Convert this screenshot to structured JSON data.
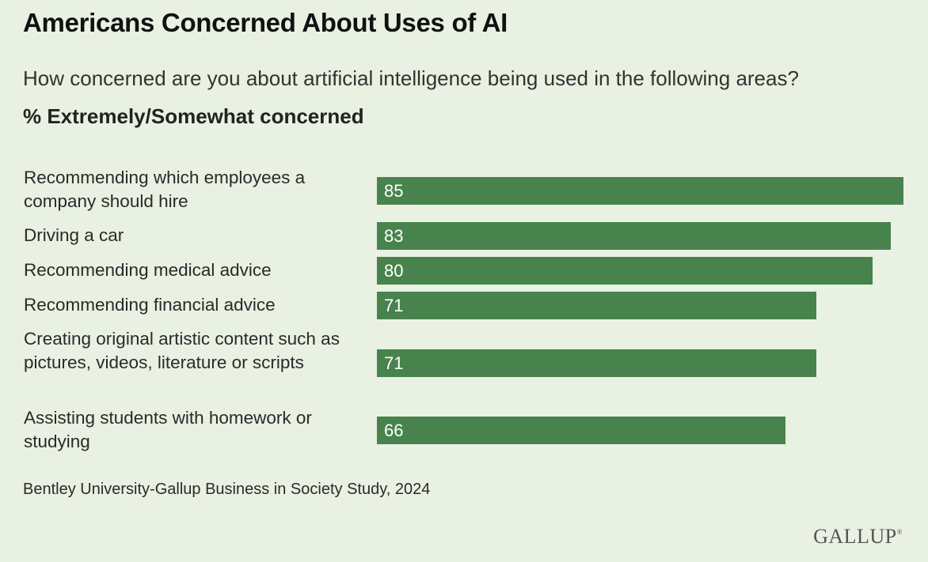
{
  "chart_data": {
    "type": "bar",
    "orientation": "horizontal",
    "title": "Americans Concerned About Uses of AI",
    "subtitle": "How concerned are you about artificial intelligence being used in the following areas?",
    "measure_label": "% Extremely/Somewhat concerned",
    "categories": [
      "Recommending which employees a company should hire",
      "Driving a car",
      "Recommending medical advice",
      "Recommending financial advice",
      "Creating original artistic content such as pictures, videos, literature or scripts",
      "Assisting students with homework or studying"
    ],
    "values": [
      85,
      83,
      80,
      71,
      71,
      66
    ],
    "xlim": [
      0,
      85
    ],
    "grid": false,
    "legend": "none",
    "bar_color": "#48834e",
    "source": "Bentley University-Gallup Business in Society Study, 2024"
  },
  "brand": {
    "logo_text": "GALLUP",
    "registered_mark": "®"
  },
  "colors": {
    "background": "#e9f1e2",
    "bar": "#48834e",
    "bar_text": "#ffffff"
  }
}
